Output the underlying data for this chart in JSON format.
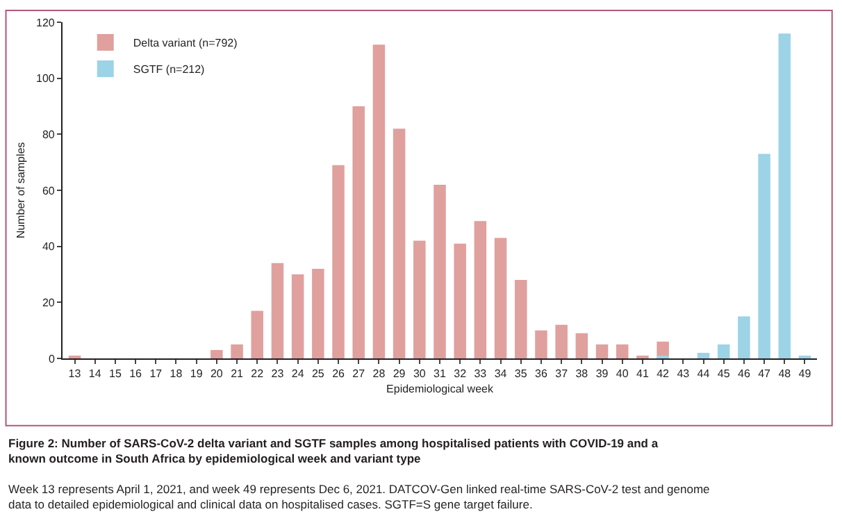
{
  "chart_data": {
    "type": "bar",
    "title": "Figure 2: Number of SARS-CoV-2 delta variant and SGTF samples among hospitalised patients with COVID-19 and a known outcome in South Africa by epidemiological week and variant type",
    "xlabel": "Epidemiological week",
    "ylabel": "Number of samples",
    "annotations": [
      "Week 13 represents April 1, 2021, and week 49 represents Dec 6, 2021. DATCOV-Gen linked real-time SARS-CoV-2 test and genome data to detailed epidemiological and clinical data on hospitalised cases. SGTF=S gene target failure."
    ],
    "categories": [
      "13",
      "14",
      "15",
      "16",
      "17",
      "18",
      "19",
      "20",
      "21",
      "22",
      "23",
      "24",
      "25",
      "26",
      "27",
      "28",
      "29",
      "30",
      "31",
      "32",
      "33",
      "34",
      "35",
      "36",
      "37",
      "38",
      "39",
      "40",
      "41",
      "42",
      "43",
      "44",
      "45",
      "46",
      "47",
      "48",
      "49"
    ],
    "series": [
      {
        "name": "Delta variant (n=792)",
        "color": "#e0a09e",
        "values": [
          1,
          0,
          0,
          0,
          0,
          0,
          0,
          3,
          5,
          17,
          34,
          30,
          32,
          69,
          90,
          112,
          82,
          42,
          62,
          41,
          49,
          43,
          28,
          10,
          12,
          9,
          5,
          5,
          1,
          6,
          0,
          null,
          null,
          null,
          null,
          null,
          null
        ]
      },
      {
        "name": "SGTF (n=212)",
        "color": "#9dd3e6",
        "values": [
          null,
          null,
          null,
          null,
          null,
          null,
          null,
          null,
          null,
          null,
          null,
          null,
          null,
          null,
          null,
          null,
          null,
          null,
          null,
          null,
          null,
          null,
          null,
          null,
          null,
          null,
          null,
          null,
          null,
          1,
          null,
          2,
          5,
          15,
          73,
          116,
          1
        ]
      }
    ],
    "ylim": [
      0,
      120
    ],
    "yticks": [
      0,
      20,
      40,
      60,
      80,
      100,
      120
    ],
    "legend": "top left"
  }
}
